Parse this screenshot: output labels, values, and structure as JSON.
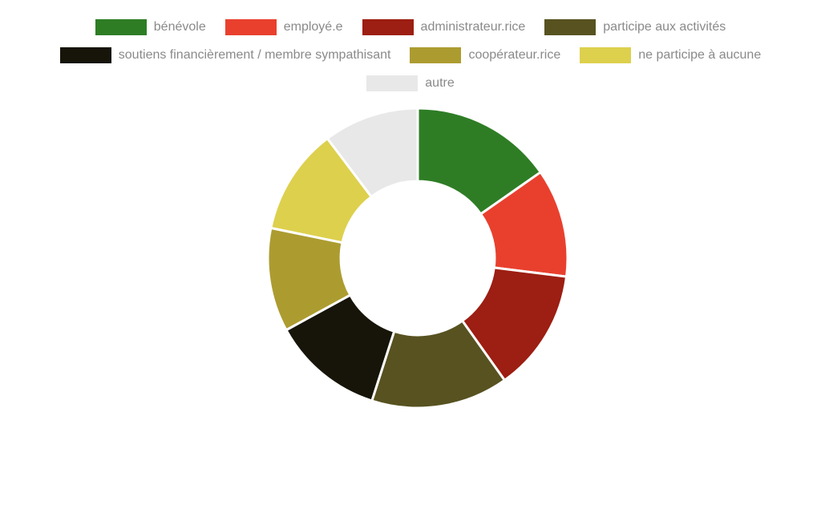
{
  "page": {
    "background": "#ffffff"
  },
  "chart_data": {
    "type": "pie",
    "subtype": "donut",
    "title": "",
    "legend_position": "top",
    "legend_rows": [
      4,
      3,
      1
    ],
    "legend_text_color": "#8a8a8a",
    "direction": "clockwise",
    "start_angle_deg": 0,
    "inner_radius_ratio": 0.513,
    "separator_color": "#ffffff",
    "categories": [
      "bénévole",
      "employé.e",
      "administrateur.rice",
      "participe aux activités",
      "soutiens financièrement / membre sympathisant",
      "coopérateur.rice",
      "ne participe à aucune",
      "autre"
    ],
    "values": [
      15.3,
      11.7,
      13.2,
      14.8,
      12.1,
      11.2,
      11.5,
      10.3
    ],
    "unit": "percent",
    "colors": [
      "#2e7d25",
      "#e9402e",
      "#9d1e12",
      "#575220",
      "#171509",
      "#ac9c30",
      "#ddd04d",
      "#e8e8e8"
    ]
  }
}
